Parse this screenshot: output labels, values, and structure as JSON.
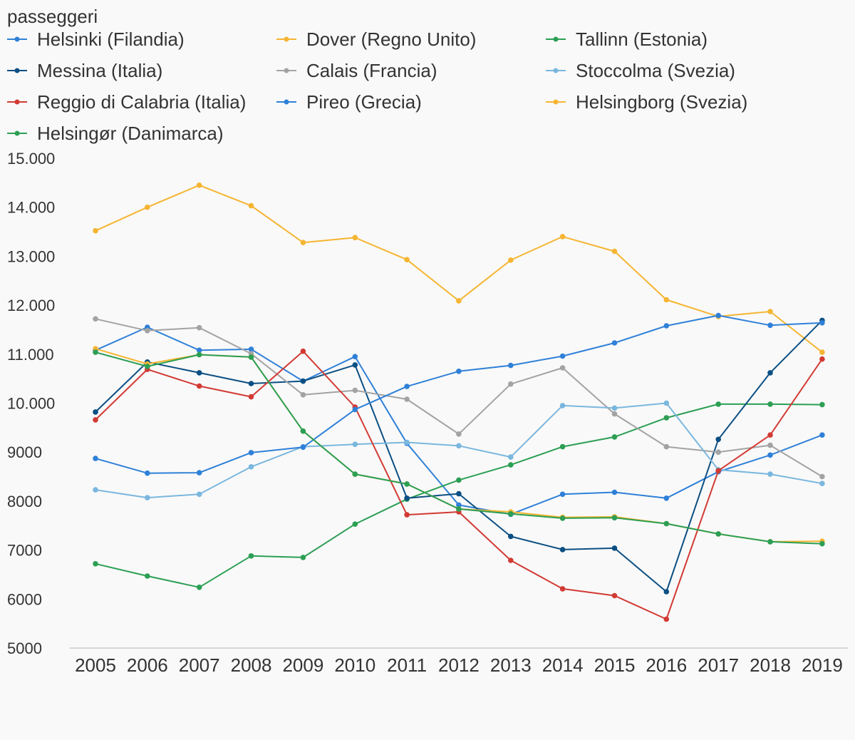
{
  "chart_data": {
    "type": "line",
    "ylabel": "passeggeri",
    "ylim": [
      5000,
      15000
    ],
    "y_ticks": [
      "5000",
      "6000",
      "7000",
      "8000",
      "9000",
      "10.000",
      "11.000",
      "12.000",
      "13.000",
      "14.000",
      "15.000"
    ],
    "y_tick_values": [
      5000,
      6000,
      7000,
      8000,
      9000,
      10000,
      11000,
      12000,
      13000,
      14000,
      15000
    ],
    "x": [
      "2005",
      "2006",
      "2007",
      "2008",
      "2009",
      "2010",
      "2011",
      "2012",
      "2013",
      "2014",
      "2015",
      "2016",
      "2017",
      "2018",
      "2019"
    ],
    "grid": false,
    "legend_position": "top",
    "series": [
      {
        "name": "Helsinki (Filandia)",
        "color": "#2f80d8",
        "values": [
          11080,
          11550,
          11080,
          11100,
          10450,
          10950,
          9180,
          7920,
          7730,
          8140,
          8180,
          8060,
          8600,
          8940,
          9350
        ]
      },
      {
        "name": "Dover (Regno Unito)",
        "color": "#f5b532",
        "values": [
          13520,
          14000,
          14450,
          14030,
          13280,
          13380,
          12930,
          12090,
          12920,
          13400,
          13100,
          12110,
          11770,
          11870,
          11040
        ]
      },
      {
        "name": "Tallinn (Estonia)",
        "color": "#2c9f54",
        "values": [
          6720,
          6470,
          6240,
          6880,
          6850,
          7530,
          8040,
          8430,
          8740,
          9110,
          9310,
          9700,
          9980,
          9980,
          9970
        ]
      },
      {
        "name": "Messina (Italia)",
        "color": "#0b4f83",
        "values": [
          9820,
          10840,
          10620,
          10400,
          10450,
          10780,
          8060,
          8150,
          7280,
          7010,
          7040,
          6150,
          9260,
          10620,
          11690
        ]
      },
      {
        "name": "Calais (Francia)",
        "color": "#a3a3a3",
        "values": [
          11720,
          11480,
          11540,
          11010,
          10170,
          10260,
          10080,
          9370,
          10390,
          10720,
          9780,
          9110,
          9000,
          9140,
          8500
        ]
      },
      {
        "name": "Stoccolma (Svezia)",
        "color": "#7ab7de",
        "values": [
          8230,
          8070,
          8140,
          8700,
          9110,
          9160,
          9200,
          9130,
          8900,
          9950,
          9900,
          10000,
          8640,
          8550,
          8360
        ]
      },
      {
        "name": "Reggio di Calabria (Italia)",
        "color": "#d23a33",
        "values": [
          9660,
          10690,
          10350,
          10130,
          11060,
          9920,
          7720,
          7780,
          6790,
          6210,
          6070,
          5590,
          8620,
          9350,
          10900
        ]
      },
      {
        "name": "Pireo (Grecia)",
        "color": "#2f80d8",
        "values": [
          8870,
          8570,
          8580,
          8990,
          9100,
          9870,
          10340,
          10650,
          10770,
          10960,
          11230,
          11580,
          11790,
          11590,
          11640
        ]
      },
      {
        "name": "Helsingborg (Svezia)",
        "color": "#f5b532",
        "values": [
          11110,
          10800,
          10990,
          10940,
          9430,
          8550,
          8350,
          7840,
          7780,
          7670,
          7680,
          7540,
          7330,
          7170,
          7180
        ]
      },
      {
        "name": "Helsingør (Danimarca)",
        "color": "#2c9f54",
        "values": [
          11040,
          10750,
          10990,
          10940,
          9430,
          8550,
          8350,
          7840,
          7740,
          7650,
          7660,
          7540,
          7330,
          7170,
          7130
        ]
      }
    ]
  }
}
